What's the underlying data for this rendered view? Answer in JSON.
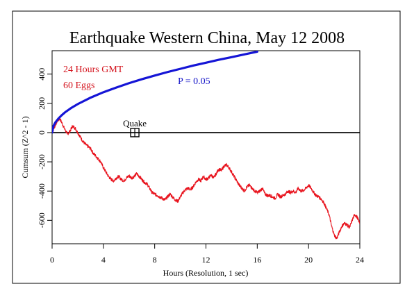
{
  "colors": {
    "background": "#ffffff",
    "frame": "#000000",
    "cumsum": "#e8141e",
    "significance": "#1515d6",
    "baseline": "#000000",
    "annotation_red": "#d4141e",
    "annotation_blue": "#1515c8"
  },
  "chart_data": {
    "type": "line",
    "title": "Earthquake Western China, May 12 2008",
    "xlabel": "Hours (Resolution, 1 sec)",
    "ylabel": "Cumsum (Z^2 - 1)",
    "xlim": [
      0,
      24
    ],
    "ylim": [
      -760,
      560
    ],
    "x_ticks": [
      0,
      4,
      8,
      12,
      16,
      20,
      24
    ],
    "y_ticks": [
      -600,
      -400,
      -200,
      0,
      200,
      400
    ],
    "grid": false,
    "annotations": {
      "period": "24 Hours GMT",
      "eggs": "60 Eggs",
      "significance_label": "P = 0.05",
      "event_label": "Quake"
    },
    "event": {
      "x": 6.45,
      "y": 0
    },
    "series": [
      {
        "name": "Cumsum",
        "x": [
          0,
          0.2,
          0.4,
          0.6,
          0.8,
          1.0,
          1.2,
          1.4,
          1.6,
          1.8,
          2.0,
          2.2,
          2.4,
          2.6,
          2.8,
          3.0,
          3.2,
          3.4,
          3.6,
          3.8,
          4.0,
          4.2,
          4.4,
          4.6,
          4.8,
          5.0,
          5.2,
          5.4,
          5.6,
          5.8,
          6.0,
          6.2,
          6.4,
          6.6,
          6.8,
          7.0,
          7.2,
          7.4,
          7.6,
          7.8,
          8.0,
          8.2,
          8.4,
          8.6,
          8.8,
          9.0,
          9.2,
          9.4,
          9.6,
          9.8,
          10.0,
          10.2,
          10.4,
          10.6,
          10.8,
          11.0,
          11.2,
          11.4,
          11.6,
          11.8,
          12.0,
          12.2,
          12.4,
          12.6,
          12.8,
          13.0,
          13.2,
          13.4,
          13.6,
          13.8,
          14.0,
          14.2,
          14.4,
          14.6,
          14.8,
          15.0,
          15.2,
          15.4,
          15.6,
          15.8,
          16.0,
          16.2,
          16.4,
          16.6,
          16.8,
          17.0,
          17.2,
          17.4,
          17.6,
          17.8,
          18.0,
          18.2,
          18.4,
          18.6,
          18.8,
          19.0,
          19.2,
          19.4,
          19.6,
          19.8,
          20.0,
          20.2,
          20.4,
          20.6,
          20.8,
          21.0,
          21.2,
          21.4,
          21.6,
          21.8,
          22.0,
          22.2,
          22.4,
          22.6,
          22.8,
          23.0,
          23.2,
          23.4,
          23.6,
          23.8,
          24.0
        ],
        "values": [
          0,
          40,
          80,
          95,
          60,
          20,
          -10,
          10,
          45,
          30,
          0,
          -30,
          -60,
          -80,
          -95,
          -110,
          -140,
          -160,
          -180,
          -200,
          -240,
          -270,
          -300,
          -320,
          -330,
          -310,
          -300,
          -320,
          -330,
          -310,
          -295,
          -310,
          -300,
          -280,
          -300,
          -320,
          -340,
          -350,
          -380,
          -410,
          -420,
          -430,
          -440,
          -450,
          -460,
          -440,
          -420,
          -440,
          -460,
          -470,
          -440,
          -410,
          -390,
          -380,
          -390,
          -370,
          -340,
          -320,
          -330,
          -300,
          -320,
          -310,
          -290,
          -310,
          -280,
          -250,
          -260,
          -230,
          -220,
          -240,
          -270,
          -300,
          -330,
          -360,
          -380,
          -400,
          -370,
          -360,
          -380,
          -400,
          -410,
          -400,
          -380,
          -420,
          -430,
          -430,
          -440,
          -450,
          -420,
          -440,
          -430,
          -420,
          -400,
          -410,
          -400,
          -410,
          -380,
          -400,
          -395,
          -380,
          -360,
          -380,
          -410,
          -430,
          -440,
          -455,
          -480,
          -520,
          -560,
          -640,
          -700,
          -725,
          -680,
          -640,
          -620,
          -630,
          -650,
          -600,
          -560,
          -580,
          -620
        ]
      },
      {
        "name": "P = 0.05",
        "x": [
          0,
          0.1,
          0.25,
          0.5,
          0.75,
          1,
          1.5,
          2,
          3,
          4,
          5,
          6,
          7,
          8,
          9,
          10,
          11,
          12,
          13,
          14,
          15,
          16
        ],
        "values": [
          0,
          44,
          69,
          97,
          119,
          138,
          169,
          195,
          239,
          276,
          308,
          338,
          365,
          390,
          414,
          436,
          458,
          478,
          498,
          516,
          535,
          553
        ]
      }
    ]
  }
}
